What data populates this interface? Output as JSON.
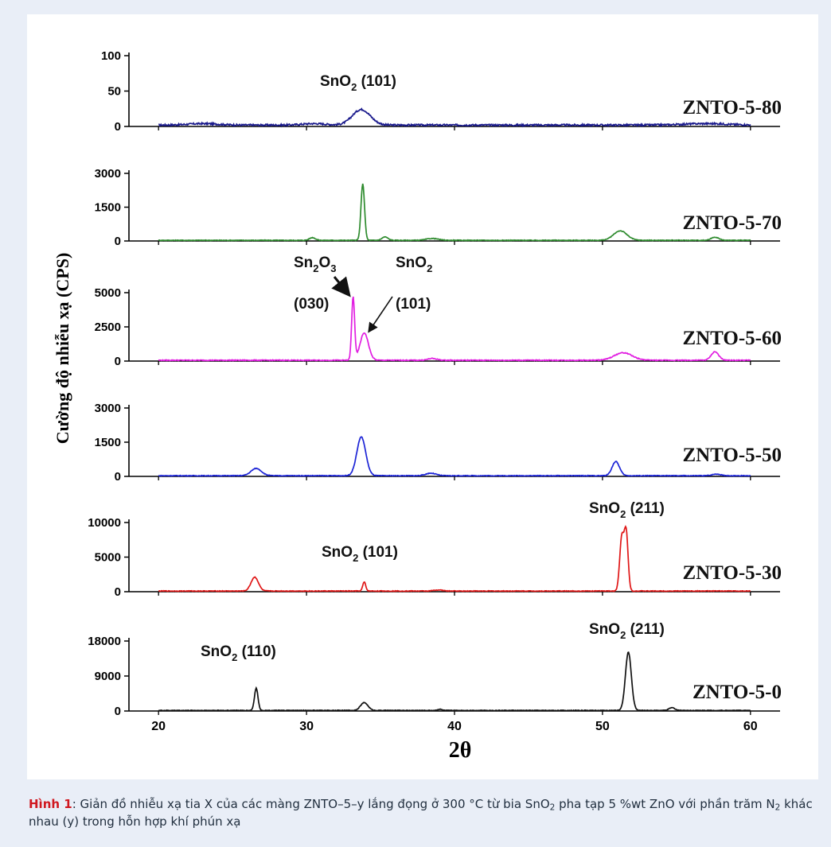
{
  "chart_data": {
    "type": "line",
    "xlabel": "2θ",
    "ylabel": "Cường độ nhiễu xạ (CPS)",
    "xlim": [
      18,
      62
    ],
    "x_ticks": [
      "20",
      "30",
      "40",
      "50",
      "60"
    ],
    "x_tick_values": [
      20,
      30,
      40,
      50,
      60
    ],
    "grid": false,
    "panels": [
      {
        "name": "ZNTO-5-80",
        "color": "#1a1a8c",
        "ylim": [
          0,
          100
        ],
        "y_ticks": [
          "100",
          "50",
          "0"
        ],
        "y_tick_values": [
          100,
          50,
          0
        ],
        "baseline": 2,
        "noise": 1.2,
        "peaks": [
          [
            23,
            2,
            1.0
          ],
          [
            30.5,
            2,
            0.8
          ],
          [
            33.7,
            22,
            0.6
          ],
          [
            57,
            2,
            1.5
          ]
        ]
      },
      {
        "name": "ZNTO-5-70",
        "color": "#2e8b2e",
        "ylim": [
          0,
          3000
        ],
        "y_ticks": [
          "3000",
          "1500",
          "0"
        ],
        "y_tick_values": [
          3000,
          1500,
          0
        ],
        "baseline": 30,
        "noise": 15,
        "peaks": [
          [
            30.4,
            120,
            0.2
          ],
          [
            33.8,
            2500,
            0.12
          ],
          [
            35.3,
            150,
            0.2
          ],
          [
            38.5,
            80,
            0.4
          ],
          [
            51.2,
            420,
            0.45
          ],
          [
            57.6,
            140,
            0.25
          ]
        ]
      },
      {
        "name": "ZNTO-5-60",
        "color": "#e11ee1",
        "ylim": [
          0,
          5000
        ],
        "y_ticks": [
          "5000",
          "2500",
          "0"
        ],
        "y_tick_values": [
          5000,
          2500,
          0
        ],
        "baseline": 60,
        "noise": 30,
        "peaks": [
          [
            33.15,
            4600,
            0.1
          ],
          [
            33.9,
            2000,
            0.28
          ],
          [
            38.5,
            130,
            0.3
          ],
          [
            51.4,
            550,
            0.6
          ],
          [
            57.6,
            620,
            0.25
          ]
        ]
      },
      {
        "name": "ZNTO-5-50",
        "color": "#1c24d6",
        "ylim": [
          0,
          3000
        ],
        "y_ticks": [
          "3000",
          "1500",
          "0"
        ],
        "y_tick_values": [
          3000,
          1500,
          0
        ],
        "baseline": 30,
        "noise": 15,
        "peaks": [
          [
            26.6,
            320,
            0.35
          ],
          [
            33.7,
            1700,
            0.3
          ],
          [
            38.4,
            110,
            0.35
          ],
          [
            50.9,
            620,
            0.25
          ],
          [
            57.7,
            70,
            0.3
          ]
        ]
      },
      {
        "name": "ZNTO-5-30",
        "color": "#e01616",
        "ylim": [
          0,
          10000
        ],
        "y_ticks": [
          "10000",
          "5000",
          "0"
        ],
        "y_tick_values": [
          10000,
          5000,
          0
        ],
        "baseline": 100,
        "noise": 50,
        "peaks": [
          [
            26.5,
            2000,
            0.25
          ],
          [
            33.9,
            1300,
            0.1
          ],
          [
            38.9,
            150,
            0.3
          ],
          [
            51.3,
            7600,
            0.14
          ],
          [
            51.6,
            8400,
            0.13
          ]
        ]
      },
      {
        "name": "ZNTO-5-0",
        "color": "#111111",
        "ylim": [
          0,
          18000
        ],
        "y_ticks": [
          "18000",
          "9000",
          "0"
        ],
        "y_tick_values": [
          18000,
          9000,
          0
        ],
        "baseline": 150,
        "noise": 80,
        "peaks": [
          [
            26.6,
            5700,
            0.12
          ],
          [
            33.9,
            2000,
            0.25
          ],
          [
            39.0,
            300,
            0.15
          ],
          [
            51.75,
            15000,
            0.2
          ],
          [
            54.7,
            700,
            0.2
          ]
        ]
      }
    ],
    "annotations": {
      "sno2": "SnO",
      "sub2": "2",
      "sub3": "3",
      "sn": "Sn",
      "o": "O",
      "hkl_101": " (101)",
      "hkl_101b": "(101)",
      "hkl_110": " (110)",
      "hkl_211": " (211)",
      "hkl_030": "(030)"
    }
  },
  "caption": {
    "label": "Hình 1",
    "p1": ": Giản đồ nhiễu xạ tia X của các màng ZNTO–5–y lắng đọng ở 300 °C từ bia SnO",
    "sub_a": "2",
    "p2": " pha tạp 5 %wt ZnO với phần trăm N",
    "sub_b": "2",
    "p3": " khác nhau (y) trong hỗn hợp khí phún xạ"
  }
}
